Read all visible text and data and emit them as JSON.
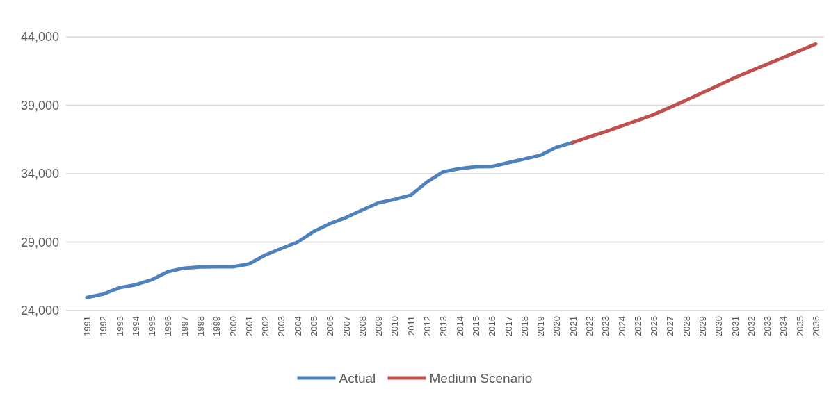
{
  "chart_data": {
    "type": "line",
    "categories": [
      "1991",
      "1992",
      "1993",
      "1994",
      "1995",
      "1996",
      "1997",
      "1998",
      "1999",
      "2000",
      "2001",
      "2002",
      "2003",
      "2004",
      "2005",
      "2006",
      "2007",
      "2008",
      "2009",
      "2010",
      "2011",
      "2012",
      "2013",
      "2014",
      "2015",
      "2016",
      "2017",
      "2018",
      "2019",
      "2020",
      "2021",
      "2022",
      "2023",
      "2024",
      "2025",
      "2026",
      "2027",
      "2028",
      "2029",
      "2030",
      "2031",
      "2032",
      "2033",
      "2034",
      "2035",
      "2036"
    ],
    "series": [
      {
        "name": "Actual",
        "color": "#4f81bd",
        "values": [
          24950,
          25200,
          25670,
          25880,
          26250,
          26840,
          27100,
          27180,
          27200,
          27200,
          27400,
          28050,
          28530,
          29000,
          29770,
          30350,
          30800,
          31350,
          31870,
          32120,
          32430,
          33400,
          34140,
          34370,
          34510,
          34520,
          34800,
          35070,
          35350,
          35940,
          36280,
          null,
          null,
          null,
          null,
          null,
          null,
          null,
          null,
          null,
          null,
          null,
          null,
          null,
          null,
          null
        ]
      },
      {
        "name": "Medium Scenario",
        "color": "#c0504d",
        "values": [
          null,
          null,
          null,
          null,
          null,
          null,
          null,
          null,
          null,
          null,
          null,
          null,
          null,
          null,
          null,
          null,
          null,
          null,
          null,
          null,
          null,
          null,
          null,
          null,
          null,
          null,
          null,
          null,
          null,
          null,
          36280,
          36680,
          37070,
          37480,
          37890,
          38320,
          38840,
          39370,
          39910,
          40460,
          41020,
          41510,
          42000,
          42490,
          42980,
          43480
        ]
      }
    ],
    "ylim": [
      24000,
      44000
    ],
    "yticks": [
      {
        "value": 24000,
        "label": "24,000"
      },
      {
        "value": 29000,
        "label": "29,000"
      },
      {
        "value": 34000,
        "label": "34,000"
      },
      {
        "value": 39000,
        "label": "39,000"
      },
      {
        "value": 44000,
        "label": "44,000"
      }
    ],
    "grid": "y",
    "legend": "bottom",
    "marker": "none",
    "line_style": "solid"
  }
}
